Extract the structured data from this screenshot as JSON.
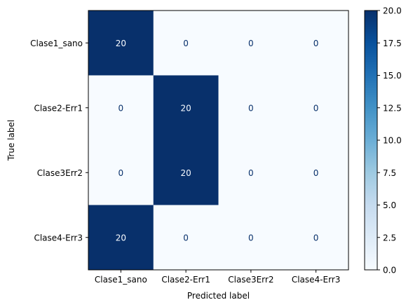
{
  "chart_data": {
    "type": "heatmap",
    "title": "",
    "xlabel": "Predicted label",
    "ylabel": "True label",
    "x_categories": [
      "Clase1_sano",
      "Clase2-Err1",
      "Clase3Err2",
      "Clase4-Err3"
    ],
    "y_categories": [
      "Clase1_sano",
      "Clase2-Err1",
      "Clase3Err2",
      "Clase4-Err3"
    ],
    "matrix": [
      [
        20,
        0,
        0,
        0
      ],
      [
        0,
        20,
        0,
        0
      ],
      [
        0,
        20,
        0,
        0
      ],
      [
        20,
        0,
        0,
        0
      ]
    ],
    "colormap": "Blues",
    "colorbar": {
      "min": 0.0,
      "max": 20.0,
      "ticks": [
        "0.0",
        "2.5",
        "5.0",
        "7.5",
        "10.0",
        "12.5",
        "15.0",
        "17.5",
        "20.0"
      ]
    },
    "colors": {
      "low": "#f7fbff",
      "high": "#08306b",
      "text_on_dark": "#f7fbff",
      "text_on_light": "#08306b"
    }
  }
}
